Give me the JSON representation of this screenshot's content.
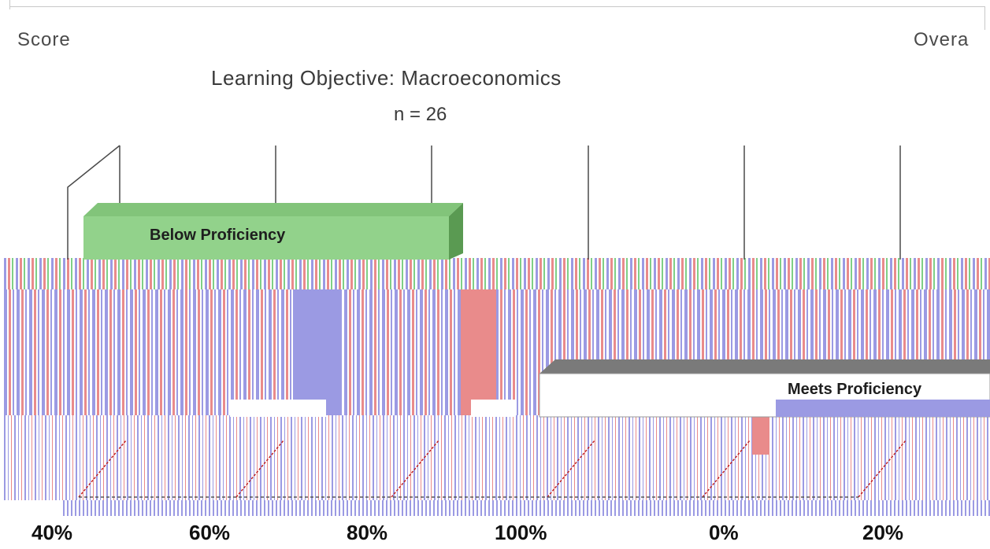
{
  "header": {
    "left": "Score",
    "right": "Overa"
  },
  "chart_data": {
    "type": "bar",
    "title": "Learning Objective: Macroeconomics",
    "subtitle": "n = 26",
    "x_tick_labels": [
      "40%",
      "60%",
      "80%",
      "100%",
      "0%",
      "20%"
    ],
    "categories": [
      "Below Proficiency",
      "Meets Proficiency"
    ],
    "annotations": [
      "Below Proficiency",
      "Meets Proficiency"
    ],
    "grid": true
  },
  "colors": {
    "green": "#92d28b",
    "green_dark": "#6fb067",
    "salmon": "#e98b8b",
    "periwinkle": "#9b9ae3",
    "gray": "#8a8a8a"
  }
}
